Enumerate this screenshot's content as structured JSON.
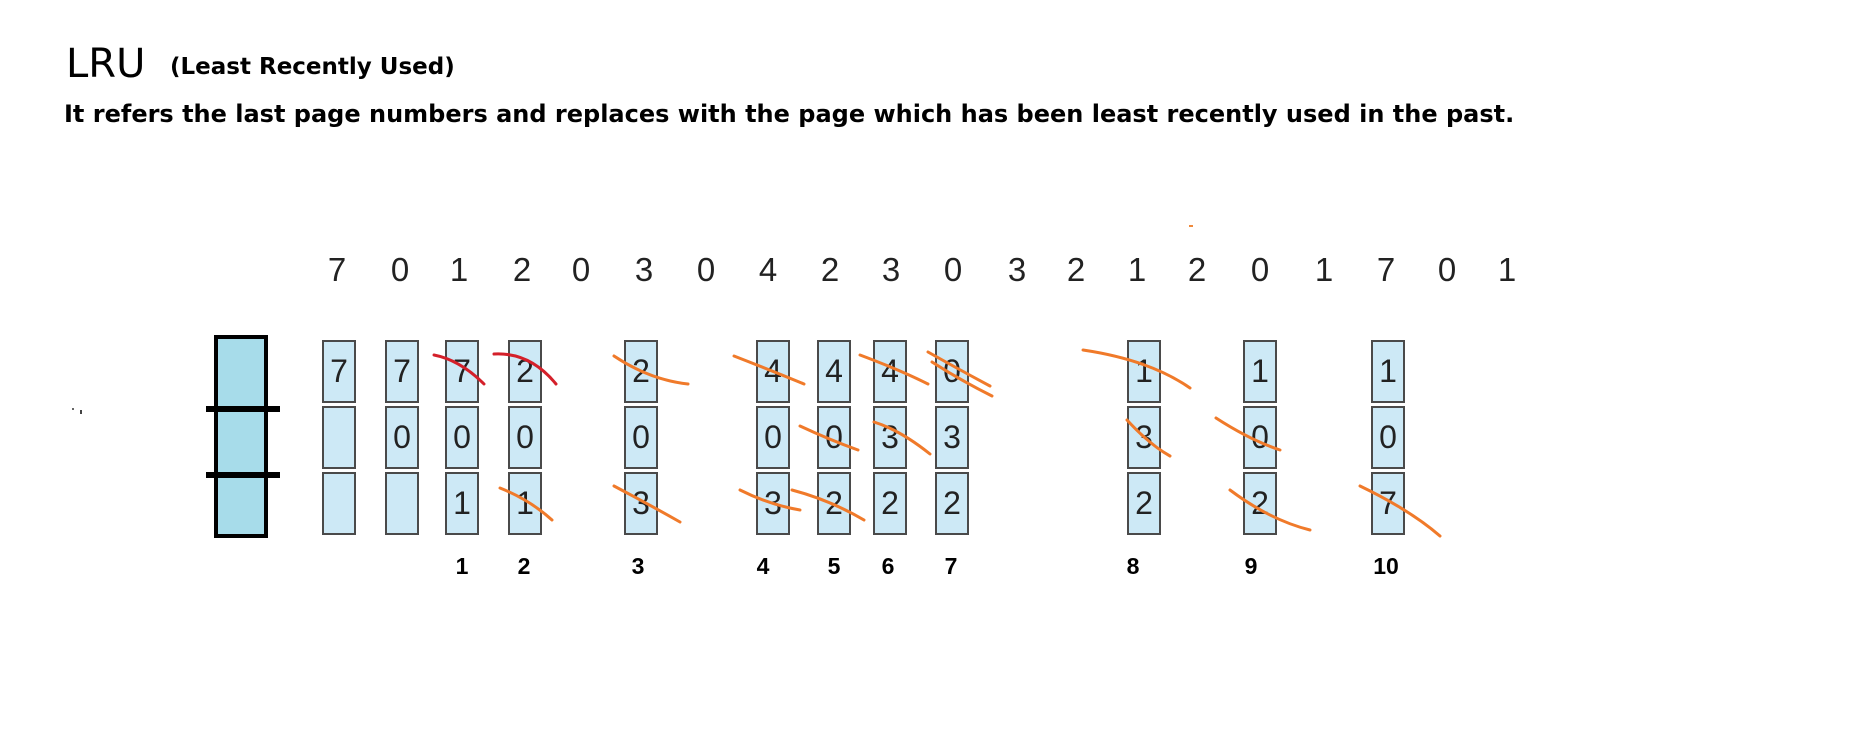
{
  "title": "LRU",
  "subtitle": "(Least Recently Used)",
  "description": "It refers the last page numbers and replaces with the page which has been least recently used in the past.",
  "reference_string": [
    "7",
    "0",
    "1",
    "2",
    "0",
    "3",
    "0",
    "4",
    "2",
    "3",
    "0",
    "3",
    "2",
    "1",
    "2",
    "0",
    "1",
    "7",
    "0",
    "1"
  ],
  "frames": [
    {
      "cells": [
        "7",
        "",
        ""
      ],
      "fault": ""
    },
    {
      "cells": [
        "7",
        "0",
        ""
      ],
      "fault": ""
    },
    {
      "cells": [
        "7",
        "0",
        "1"
      ],
      "fault": "1"
    },
    {
      "cells": [
        "2",
        "0",
        "1"
      ],
      "fault": "2"
    },
    {
      "cells": [
        "2",
        "0",
        "3"
      ],
      "fault": "3"
    },
    {
      "cells": [
        "4",
        "0",
        "3"
      ],
      "fault": "4"
    },
    {
      "cells": [
        "4",
        "0",
        "2"
      ],
      "fault": "5"
    },
    {
      "cells": [
        "4",
        "3",
        "2"
      ],
      "fault": "6"
    },
    {
      "cells": [
        "0",
        "3",
        "2"
      ],
      "fault": "7"
    },
    {
      "cells": [
        "1",
        "3",
        "2"
      ],
      "fault": "8"
    },
    {
      "cells": [
        "1",
        "0",
        "2"
      ],
      "fault": "9"
    },
    {
      "cells": [
        "1",
        "0",
        "7"
      ],
      "fault": "10"
    }
  ],
  "colors": {
    "cell_fill": "#cde9f6",
    "legend_fill": "#a7dcea",
    "strike_orange": "#f07a2a",
    "strike_red": "#d4202a"
  }
}
